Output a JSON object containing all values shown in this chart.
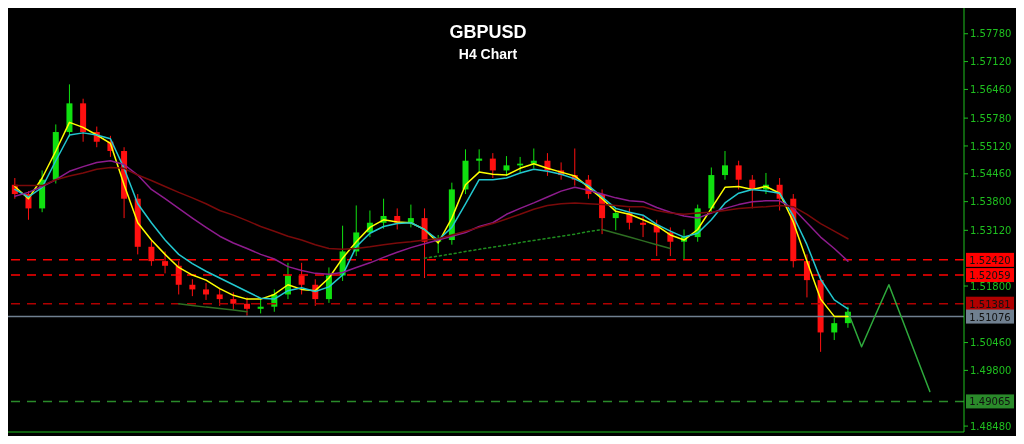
{
  "chart_data": {
    "type": "candlestick",
    "title": "GBPUSD",
    "subtitle": "H4 Chart",
    "categories": [
      null,
      null,
      null,
      null,
      null,
      null,
      null,
      null,
      null,
      null,
      null,
      null,
      null,
      null,
      null,
      null,
      null,
      null,
      null,
      null,
      null,
      null,
      null,
      null,
      null,
      null,
      null,
      null,
      null,
      null,
      null,
      null,
      null,
      null,
      null,
      null,
      null,
      null,
      null,
      null,
      null,
      null,
      null,
      null,
      null,
      null,
      null,
      null,
      null,
      null,
      null,
      null,
      null,
      null,
      null,
      null,
      null,
      null,
      null,
      null,
      null,
      null,
      null,
      null,
      null,
      null,
      null,
      null,
      null,
      null
    ],
    "ohlc": [
      [
        1.542,
        1.5436,
        1.5387,
        1.5398
      ],
      [
        1.5398,
        1.5405,
        1.5337,
        1.5364
      ],
      [
        1.5364,
        1.5454,
        1.5355,
        1.5432
      ],
      [
        1.5432,
        1.5563,
        1.5423,
        1.5545
      ],
      [
        1.5545,
        1.5658,
        1.5534,
        1.5613
      ],
      [
        1.5613,
        1.5624,
        1.5522,
        1.5545
      ],
      [
        1.5545,
        1.5558,
        1.5509,
        1.5522
      ],
      [
        1.5522,
        1.5536,
        1.5486,
        1.55
      ],
      [
        1.55,
        1.5509,
        1.5341,
        1.5387
      ],
      [
        1.5387,
        1.5398,
        1.5255,
        1.5273
      ],
      [
        1.5273,
        1.5287,
        1.5228,
        1.5239
      ],
      [
        1.5239,
        1.5262,
        1.521,
        1.5228
      ],
      [
        1.5228,
        1.5239,
        1.516,
        1.5183
      ],
      [
        1.5183,
        1.5196,
        1.5156,
        1.5172
      ],
      [
        1.5172,
        1.5187,
        1.5147,
        1.516
      ],
      [
        1.516,
        1.5174,
        1.5133,
        1.5149
      ],
      [
        1.5149,
        1.5165,
        1.5124,
        1.5138
      ],
      [
        1.5138,
        1.5153,
        1.511,
        1.5126
      ],
      [
        1.5126,
        1.5149,
        1.5115,
        1.5131
      ],
      [
        1.5131,
        1.5172,
        1.5119,
        1.516
      ],
      [
        1.516,
        1.5235,
        1.5149,
        1.5205
      ],
      [
        1.5205,
        1.5235,
        1.516,
        1.5183
      ],
      [
        1.5183,
        1.5196,
        1.5133,
        1.5149
      ],
      [
        1.5149,
        1.5224,
        1.514,
        1.5205
      ],
      [
        1.5205,
        1.5323,
        1.5192,
        1.5262
      ],
      [
        1.5262,
        1.5371,
        1.5251,
        1.5307
      ],
      [
        1.5307,
        1.5359,
        1.5296,
        1.533
      ],
      [
        1.533,
        1.5387,
        1.5316,
        1.5346
      ],
      [
        1.5346,
        1.5364,
        1.5314,
        1.533
      ],
      [
        1.533,
        1.5373,
        1.5319,
        1.5341
      ],
      [
        1.5341,
        1.5364,
        1.5199,
        1.5285
      ],
      [
        1.5285,
        1.5301,
        1.5258,
        1.5289
      ],
      [
        1.5289,
        1.5425,
        1.5278,
        1.5409
      ],
      [
        1.5409,
        1.5504,
        1.5398,
        1.5477
      ],
      [
        1.5477,
        1.5504,
        1.545,
        1.5482
      ],
      [
        1.5482,
        1.5495,
        1.5436,
        1.5454
      ],
      [
        1.5454,
        1.5488,
        1.5441,
        1.5466
      ],
      [
        1.5466,
        1.5486,
        1.545,
        1.547
      ],
      [
        1.547,
        1.5506,
        1.5459,
        1.5477
      ],
      [
        1.5477,
        1.5495,
        1.5441,
        1.5454
      ],
      [
        1.5454,
        1.5473,
        1.5432,
        1.5443
      ],
      [
        1.5443,
        1.5506,
        1.5418,
        1.5432
      ],
      [
        1.5432,
        1.5443,
        1.5387,
        1.5398
      ],
      [
        1.5398,
        1.5409,
        1.5303,
        1.5341
      ],
      [
        1.5341,
        1.5364,
        1.5312,
        1.5353
      ],
      [
        1.5353,
        1.5364,
        1.5314,
        1.533
      ],
      [
        1.533,
        1.5346,
        1.5296,
        1.5325
      ],
      [
        1.5325,
        1.5337,
        1.5251,
        1.5307
      ],
      [
        1.5307,
        1.5319,
        1.5251,
        1.5285
      ],
      [
        1.5285,
        1.5314,
        1.5244,
        1.5296
      ],
      [
        1.5296,
        1.5373,
        1.5285,
        1.5364
      ],
      [
        1.5364,
        1.5461,
        1.5355,
        1.5443
      ],
      [
        1.5443,
        1.55,
        1.5432,
        1.5466
      ],
      [
        1.5466,
        1.5477,
        1.5409,
        1.5432
      ],
      [
        1.5432,
        1.5443,
        1.5364,
        1.5409
      ],
      [
        1.5409,
        1.5448,
        1.5398,
        1.542
      ],
      [
        1.542,
        1.5436,
        1.5359,
        1.5387
      ],
      [
        1.5387,
        1.5398,
        1.5224,
        1.5239
      ],
      [
        1.5239,
        1.5255,
        1.5153,
        1.5194
      ],
      [
        1.5194,
        1.5205,
        1.5024,
        1.507
      ],
      [
        1.507,
        1.5104,
        1.5052,
        1.5092
      ],
      [
        1.5092,
        1.5131,
        1.5081,
        1.5119
      ],
      null,
      null,
      null,
      null,
      null,
      null,
      null,
      null
    ],
    "series": [
      {
        "type": "line",
        "color": "#ffff00",
        "values": [
          1.5416,
          1.5387,
          1.5436,
          1.55,
          1.5568,
          1.5556,
          1.5538,
          1.5518,
          1.542,
          1.533,
          1.5289,
          1.5255,
          1.5224,
          1.5206,
          1.5194,
          1.5174,
          1.5158,
          1.5149,
          1.5149,
          1.516,
          1.5183,
          1.5172,
          1.5169,
          1.5199,
          1.5246,
          1.5285,
          1.5319,
          1.5337,
          1.5332,
          1.533,
          1.5314,
          1.5282,
          1.5341,
          1.542,
          1.545,
          1.5445,
          1.5443,
          1.5459,
          1.547,
          1.5459,
          1.545,
          1.5441,
          1.5414,
          1.5387,
          1.5357,
          1.535,
          1.5337,
          1.5323,
          1.5301,
          1.5289,
          1.5314,
          1.5364,
          1.5414,
          1.5416,
          1.5409,
          1.5416,
          1.54,
          1.5332,
          1.5239,
          1.5149,
          1.5108,
          1.5108,
          null,
          null,
          null,
          null,
          null,
          null,
          null,
          null
        ]
      },
      {
        "type": "line",
        "color": "#22c8d0",
        "values": [
          1.5409,
          1.5391,
          1.5414,
          1.5477,
          1.5538,
          1.5543,
          1.5538,
          1.5529,
          1.5459,
          1.5375,
          1.533,
          1.5289,
          1.5255,
          1.5233,
          1.5215,
          1.5199,
          1.5183,
          1.5167,
          1.5151,
          1.5149,
          1.5169,
          1.5176,
          1.5167,
          1.5178,
          1.5206,
          1.5273,
          1.5305,
          1.5321,
          1.5328,
          1.533,
          1.5314,
          1.5289,
          1.5319,
          1.5375,
          1.5432,
          1.5432,
          1.5436,
          1.5448,
          1.5457,
          1.5452,
          1.5445,
          1.5434,
          1.5418,
          1.5391,
          1.5364,
          1.5355,
          1.5348,
          1.5326,
          1.531,
          1.5296,
          1.5305,
          1.5337,
          1.5377,
          1.54,
          1.5409,
          1.5405,
          1.54,
          1.5346,
          1.5278,
          1.5196,
          1.5147,
          1.5126,
          null,
          null,
          null,
          null,
          null,
          null,
          null,
          null
        ]
      },
      {
        "type": "line",
        "color": "#8e1c8e",
        "values": [
          1.5393,
          1.5402,
          1.5416,
          1.5432,
          1.5452,
          1.5463,
          1.5473,
          1.5477,
          1.5468,
          1.5443,
          1.5409,
          1.5387,
          1.5364,
          1.5341,
          1.5319,
          1.5298,
          1.5282,
          1.5269,
          1.5255,
          1.5244,
          1.5226,
          1.5217,
          1.521,
          1.5208,
          1.5212,
          1.5224,
          1.5235,
          1.5248,
          1.526,
          1.5271,
          1.528,
          1.5289,
          1.5298,
          1.5307,
          1.5321,
          1.533,
          1.535,
          1.5364,
          1.5377,
          1.5391,
          1.5405,
          1.5414,
          1.5407,
          1.5398,
          1.5389,
          1.5382,
          1.538,
          1.5366,
          1.5355,
          1.5346,
          1.5341,
          1.5353,
          1.5364,
          1.5373,
          1.538,
          1.5382,
          1.5382,
          1.5364,
          1.533,
          1.5296,
          1.5269,
          1.5239,
          null,
          null,
          null,
          null,
          null,
          null,
          null,
          null
        ]
      },
      {
        "type": "line",
        "color": "#7a0a0a",
        "values": [
          1.5418,
          1.5418,
          1.5418,
          1.5432,
          1.5441,
          1.5448,
          1.5457,
          1.5461,
          1.5459,
          1.5443,
          1.543,
          1.5416,
          1.5402,
          1.5389,
          1.5375,
          1.5359,
          1.5348,
          1.5335,
          1.5321,
          1.531,
          1.5298,
          1.5289,
          1.5278,
          1.5269,
          1.5267,
          1.5269,
          1.5273,
          1.5278,
          1.5282,
          1.5285,
          1.5289,
          1.5292,
          1.5301,
          1.531,
          1.5319,
          1.5328,
          1.5339,
          1.535,
          1.5362,
          1.5371,
          1.5375,
          1.5377,
          1.5375,
          1.5373,
          1.5371,
          1.5368,
          1.5368,
          1.5359,
          1.5353,
          1.535,
          1.5353,
          1.5355,
          1.5359,
          1.5364,
          1.5366,
          1.5368,
          1.5371,
          1.5368,
          1.535,
          1.5328,
          1.531,
          1.5292,
          null,
          null,
          null,
          null,
          null,
          null,
          null,
          null
        ]
      },
      {
        "type": "line",
        "color": "#1e8c1e",
        "line_style": "dotted",
        "values": [
          null,
          null,
          null,
          null,
          null,
          null,
          null,
          null,
          null,
          null,
          null,
          null,
          null,
          null,
          null,
          null,
          null,
          null,
          null,
          null,
          null,
          null,
          null,
          null,
          null,
          null,
          null,
          null,
          null,
          null,
          1.5246,
          1.5251,
          1.5256,
          1.5262,
          1.5267,
          1.5272,
          1.5277,
          1.5283,
          1.5288,
          1.5293,
          1.5298,
          1.5303,
          1.5309,
          1.5314,
          null,
          null,
          null,
          null,
          null,
          null,
          null,
          null,
          null,
          null,
          null,
          null,
          null,
          null,
          null,
          null,
          null,
          null,
          null,
          null,
          null,
          null,
          null,
          null,
          null,
          null
        ]
      },
      {
        "type": "line",
        "color": "#2e6e22",
        "values": [
          null,
          null,
          null,
          null,
          null,
          null,
          null,
          null,
          null,
          null,
          null,
          null,
          1.5138,
          1.5134,
          1.513,
          1.5127,
          1.5123,
          1.5119,
          null,
          null,
          null,
          null,
          null,
          null,
          null,
          null,
          null,
          null,
          null,
          null,
          null,
          null,
          null,
          null,
          null,
          null,
          null,
          null,
          null,
          null,
          null,
          null,
          null,
          1.5314,
          1.5305,
          1.5296,
          1.5287,
          1.5278,
          1.5269,
          null,
          null,
          null,
          null,
          null,
          null,
          null,
          null,
          null,
          null,
          null,
          null,
          null,
          null,
          null,
          null,
          null,
          null,
          null,
          null,
          null
        ]
      },
      {
        "type": "line",
        "color": "#2eaa3c",
        "values": [
          null,
          null,
          null,
          null,
          null,
          null,
          null,
          null,
          null,
          null,
          null,
          null,
          null,
          null,
          null,
          null,
          null,
          null,
          null,
          null,
          null,
          null,
          null,
          null,
          null,
          null,
          null,
          null,
          null,
          null,
          null,
          null,
          null,
          null,
          null,
          null,
          null,
          null,
          null,
          null,
          null,
          null,
          null,
          null,
          null,
          null,
          null,
          null,
          null,
          null,
          null,
          null,
          null,
          null,
          null,
          null,
          null,
          null,
          null,
          null,
          null,
          1.5119,
          1.5036,
          1.511,
          1.5183,
          1.5099,
          1.5014,
          1.493,
          null,
          null
        ]
      }
    ],
    "ylim": [
      1.4834,
      1.5839
    ],
    "yticks": [
      {
        "value": 1.5778,
        "label": "1.57780"
      },
      {
        "value": 1.5712,
        "label": "1.57120"
      },
      {
        "value": 1.5646,
        "label": "1.56460"
      },
      {
        "value": 1.5578,
        "label": "1.55780"
      },
      {
        "value": 1.5512,
        "label": "1.55120"
      },
      {
        "value": 1.5446,
        "label": "1.54460"
      },
      {
        "value": 1.538,
        "label": "1.53800"
      },
      {
        "value": 1.5312,
        "label": "1.53120"
      },
      {
        "value": 1.518,
        "label": "1.51800"
      },
      {
        "value": 1.5046,
        "label": "1.50460"
      },
      {
        "value": 1.498,
        "label": "1.49800"
      },
      {
        "value": 1.4848,
        "label": "1.48480"
      }
    ],
    "ref_lines": [
      {
        "axis": "y",
        "value": 1.5242,
        "label": "1.52420",
        "color": "#ff0000",
        "line_style": "dashed"
      },
      {
        "axis": "y",
        "value": 1.52059,
        "label": "1.52059",
        "color": "#ff0000",
        "line_style": "dashed"
      },
      {
        "axis": "y",
        "value": 1.51381,
        "label": "1.51381",
        "color": "#b00000",
        "line_style": "dashed"
      },
      {
        "axis": "y",
        "value": 1.51076,
        "label": "1.51076",
        "color": "#708090",
        "line_style": "solid"
      },
      {
        "axis": "y",
        "value": 1.49065,
        "label": "1.49065",
        "color": "#2a8a2a",
        "line_style": "dashed"
      }
    ],
    "tick_labels": "y",
    "marker": "none"
  }
}
